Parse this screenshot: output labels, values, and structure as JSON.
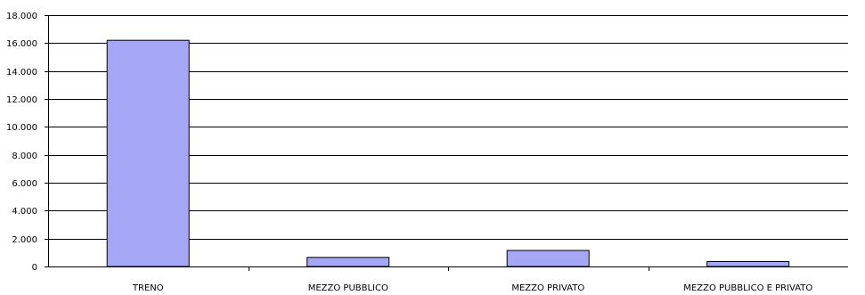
{
  "chart_data": {
    "type": "bar",
    "categories": [
      "TRENO",
      "MEZZO PUBBLICO",
      "MEZZO PRIVATO",
      "MEZZO PUBBLICO E PRIVATO"
    ],
    "values": [
      16200,
      650,
      1150,
      350
    ],
    "ylim": [
      0,
      18000
    ],
    "yticks": [
      0,
      2000,
      4000,
      6000,
      8000,
      10000,
      12000,
      14000,
      16000,
      18000
    ],
    "ytick_labels": [
      "0",
      "2.000",
      "4.000",
      "6.000",
      "8.000",
      "10.000",
      "12.000",
      "14.000",
      "16.000",
      "18.000"
    ],
    "grid": true,
    "legend": "none",
    "colors": {
      "bar_fill": "#a6a6f7",
      "bar_stroke": "#000000",
      "grid": "#000000"
    }
  }
}
